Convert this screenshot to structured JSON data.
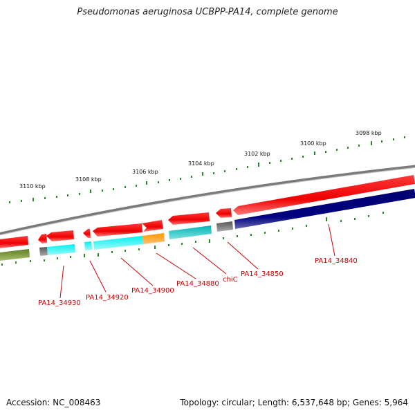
{
  "title": "Pseudomonas aeruginosa UCBPP-PA14, complete genome",
  "footer": {
    "accession": "Accession: NC_008463",
    "topology": "Topology: circular; Length: 6,537,648 bp; Genes: 5,964"
  },
  "colors": {
    "backbone": "#888888",
    "forward_gene": "#ee0000",
    "cds_cyan": "#00dddd",
    "cds_teal": "#00bbbb",
    "cds_navy": "#000080",
    "cds_olive": "#6b8e23",
    "cds_orange": "#ff9900",
    "cds_gray": "#666666",
    "ticks": "#228b22",
    "labels": "#cc0000"
  },
  "chart_data": {
    "type": "genome-map",
    "units": "kbp",
    "ticks": [
      {
        "kbp": 3098,
        "label": "3098 kbp"
      },
      {
        "kbp": 3100,
        "label": "3100 kbp"
      },
      {
        "kbp": 3102,
        "label": "3102 kbp"
      },
      {
        "kbp": 3104,
        "label": "3104 kbp"
      },
      {
        "kbp": 3106,
        "label": "3106 kbp"
      },
      {
        "kbp": 3108,
        "label": "3108 kbp"
      },
      {
        "kbp": 3110,
        "label": "3110 kbp"
      }
    ],
    "gene_labels": [
      "PA14_34840",
      "PA14_34850",
      "chiC",
      "PA14_34880",
      "PA14_34900",
      "PA14_34920",
      "PA14_34930"
    ]
  }
}
